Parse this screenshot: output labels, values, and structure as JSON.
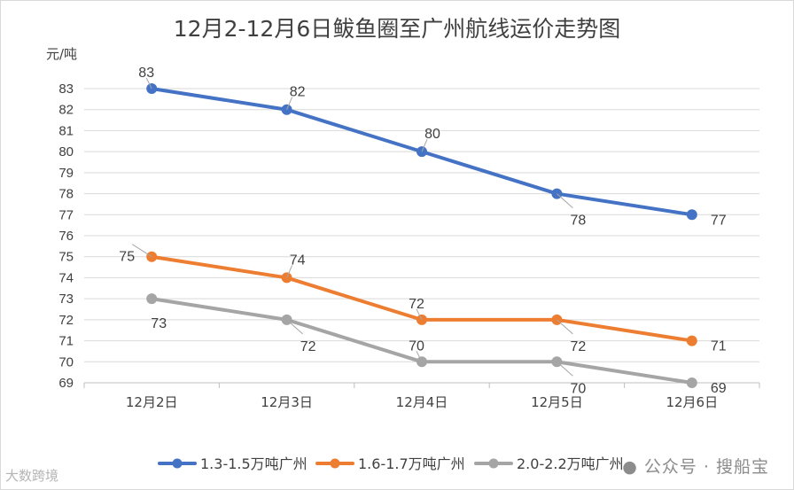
{
  "chart_data": {
    "type": "line",
    "title": "12月2-12月6日鲅鱼圈至广州航线运价走势图",
    "ylabel": "元/吨",
    "xlabel": "",
    "categories": [
      "12月2日",
      "12月3日",
      "12月4日",
      "12月5日",
      "12月6日"
    ],
    "ylim": [
      69,
      83
    ],
    "yticks": [
      69,
      70,
      71,
      72,
      73,
      74,
      75,
      76,
      77,
      78,
      79,
      80,
      81,
      82,
      83
    ],
    "grid": true,
    "legend_position": "bottom",
    "series": [
      {
        "name": "1.3-1.5万吨广州",
        "color": "#4472C4",
        "values": [
          83,
          82,
          80,
          78,
          77
        ],
        "label_pos": [
          "above",
          "above-right",
          "above-right",
          "below-right",
          "right"
        ]
      },
      {
        "name": "1.6-1.7万吨广州",
        "color": "#ED7D31",
        "values": [
          75,
          74,
          72,
          72,
          71
        ],
        "label_pos": [
          "left",
          "above-right",
          "above",
          "below-right",
          "right"
        ]
      },
      {
        "name": "2.0-2.2万吨广州",
        "color": "#A5A5A5",
        "values": [
          73,
          72,
          70,
          70,
          69
        ],
        "label_pos": [
          "below",
          "below-right",
          "above",
          "below-right",
          "right"
        ]
      }
    ]
  },
  "watermarks": {
    "right": "公众号 · 搜船宝",
    "left": "大数跨境"
  }
}
